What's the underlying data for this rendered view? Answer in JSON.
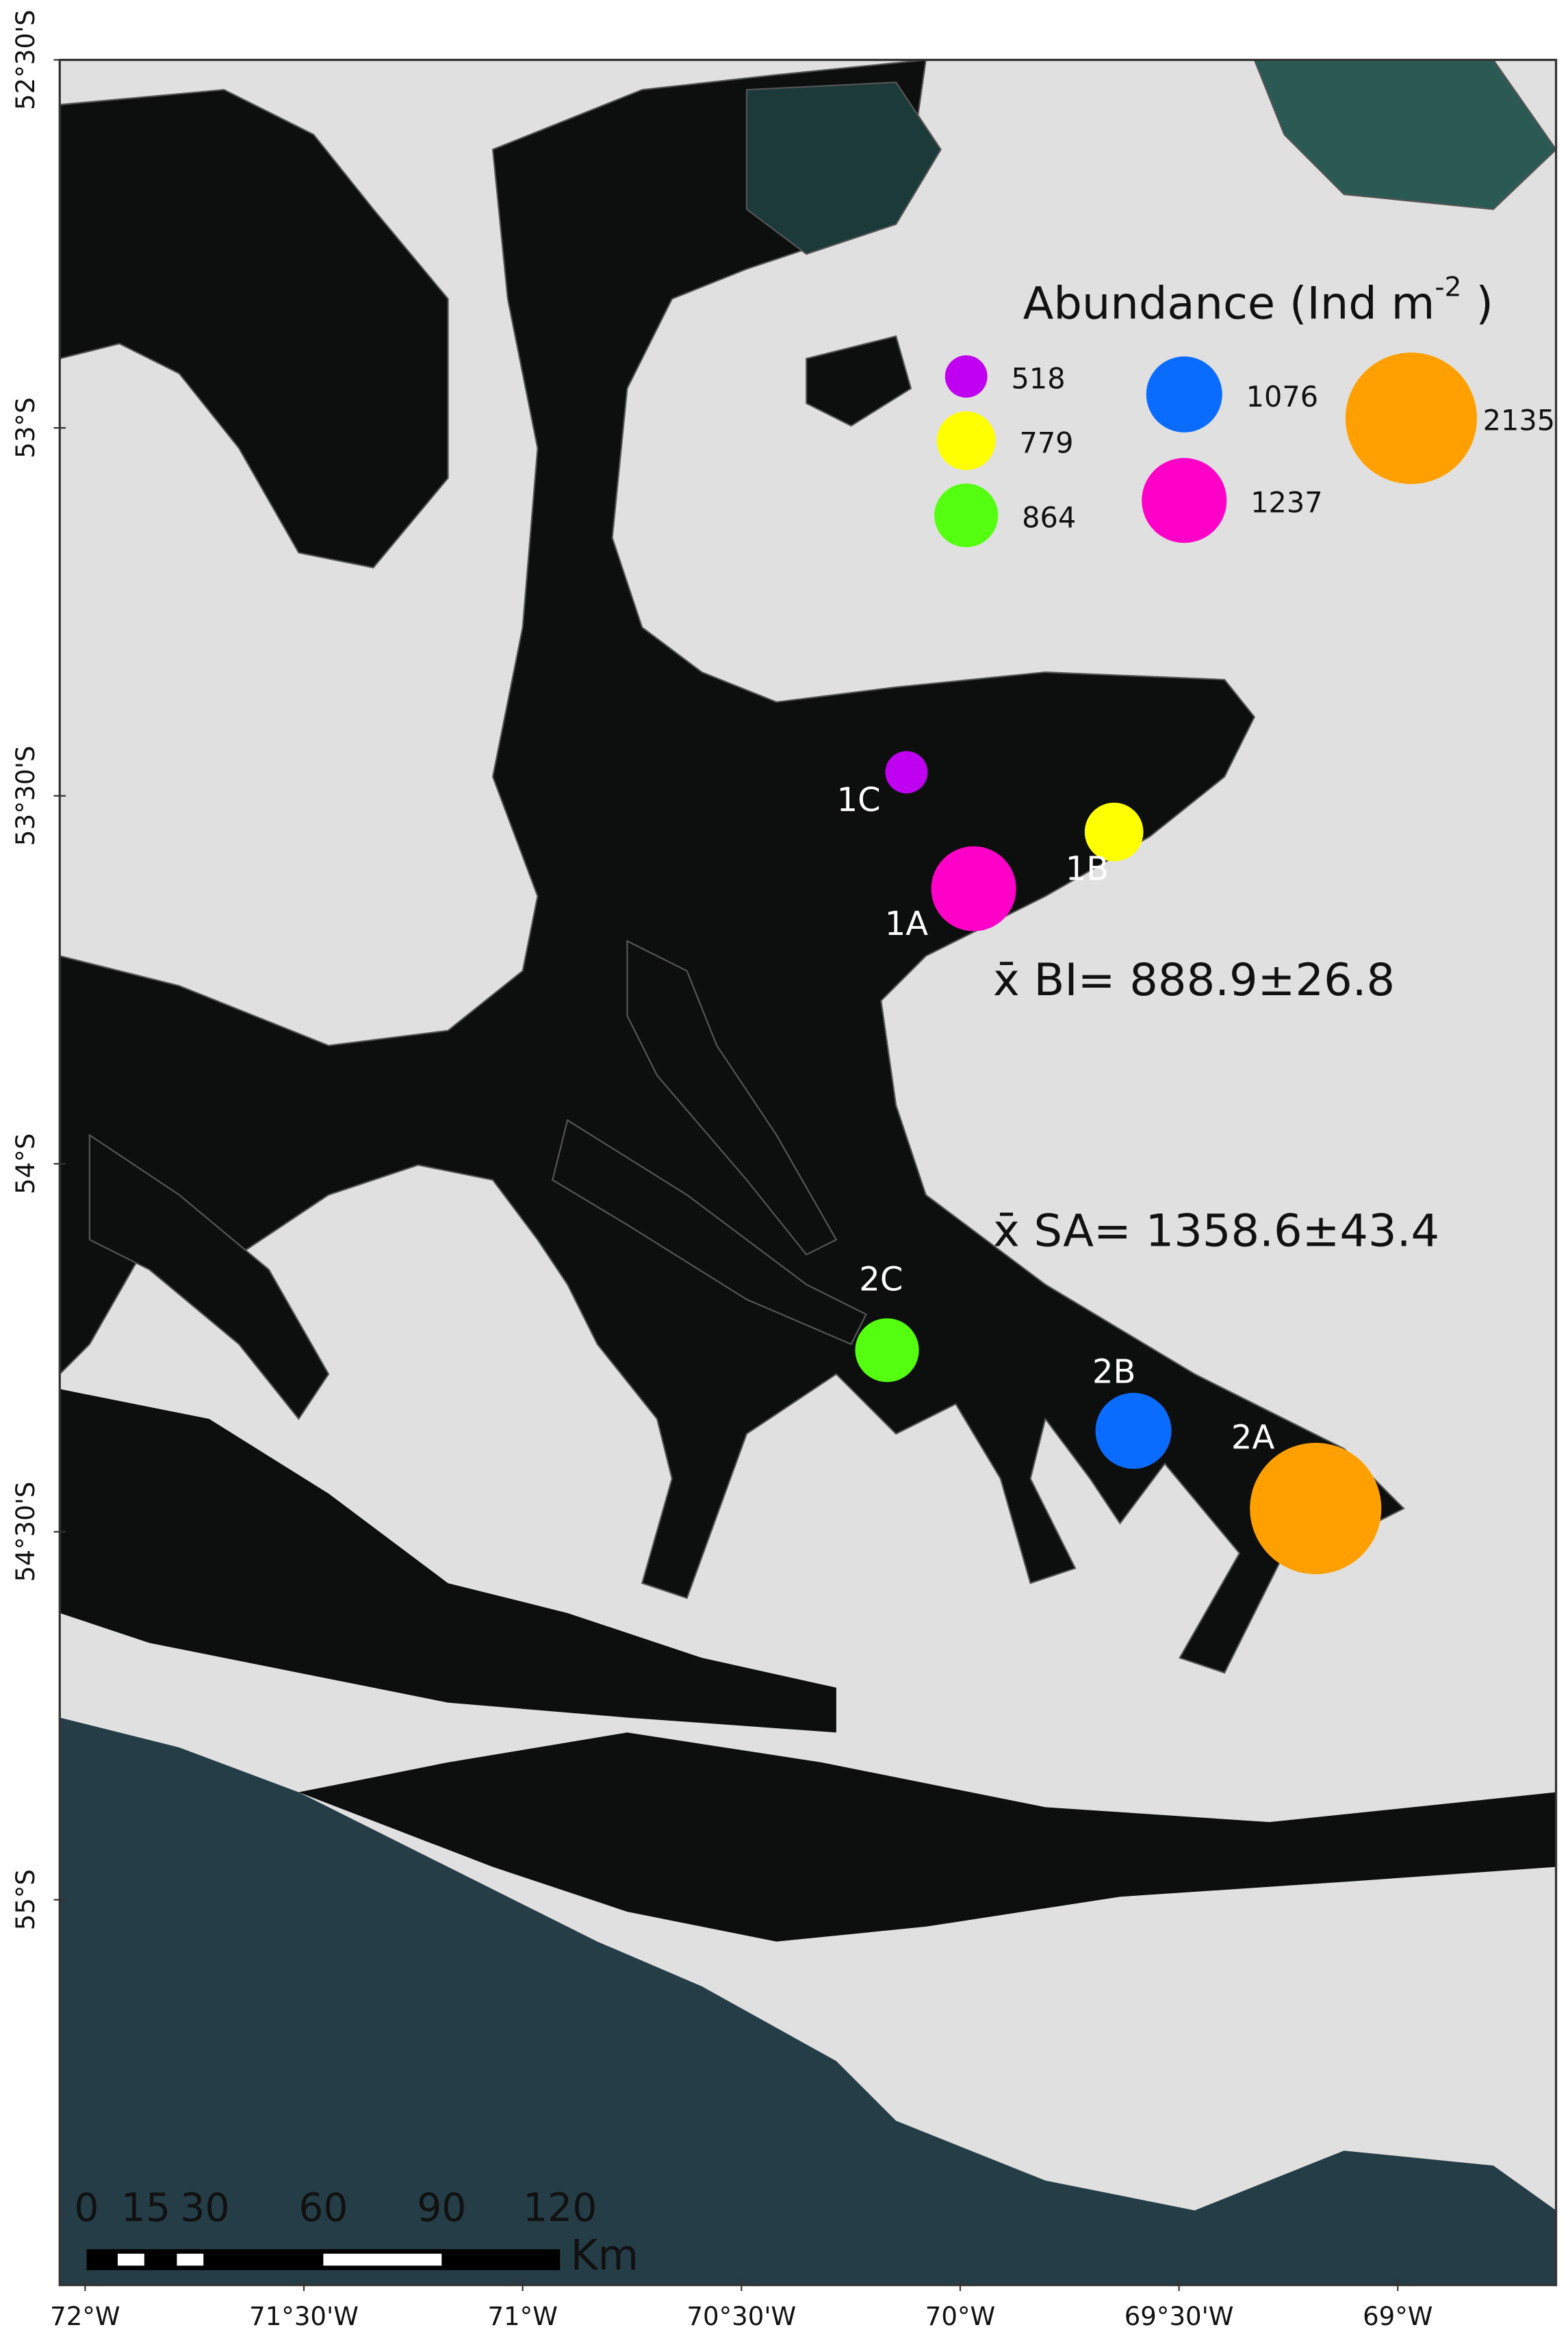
{
  "map": {
    "lat_labels": [
      "52°30'S",
      "53°S",
      "53°30'S",
      "54°S",
      "54°30'S",
      "55°S"
    ],
    "lon_labels": [
      "72°W",
      "71°30'W",
      "71°W",
      "70°30'W",
      "70°W",
      "69°30'W",
      "69°W"
    ],
    "legend": {
      "title": "Abundance (Ind m",
      "title_sup": "-2",
      "title_end": " )",
      "values": [
        518,
        779,
        864,
        1076,
        1237,
        2135
      ],
      "colors": [
        "#c000f0",
        "#ffff00",
        "#55ff10",
        "#0a6cff",
        "#ff00c8",
        "#ffa000"
      ]
    },
    "sites": [
      {
        "label": "1C",
        "abundance": 518,
        "color": "#c000f0"
      },
      {
        "label": "1B",
        "abundance": 779,
        "color": "#ffff00"
      },
      {
        "label": "1A",
        "abundance": 1237,
        "color": "#ff00c8"
      },
      {
        "label": "2C",
        "abundance": 864,
        "color": "#55ff10"
      },
      {
        "label": "2B",
        "abundance": 1076,
        "color": "#0a6cff"
      },
      {
        "label": "2A",
        "abundance": 2135,
        "color": "#ffa000"
      }
    ],
    "annotations": [
      "x̄ BI= 888.9±26.8",
      "x̄ SA= 1358.6±43.4"
    ],
    "scale_bar": {
      "ticks": [
        0,
        15,
        30,
        60,
        90,
        120
      ],
      "unit": "Km"
    }
  }
}
